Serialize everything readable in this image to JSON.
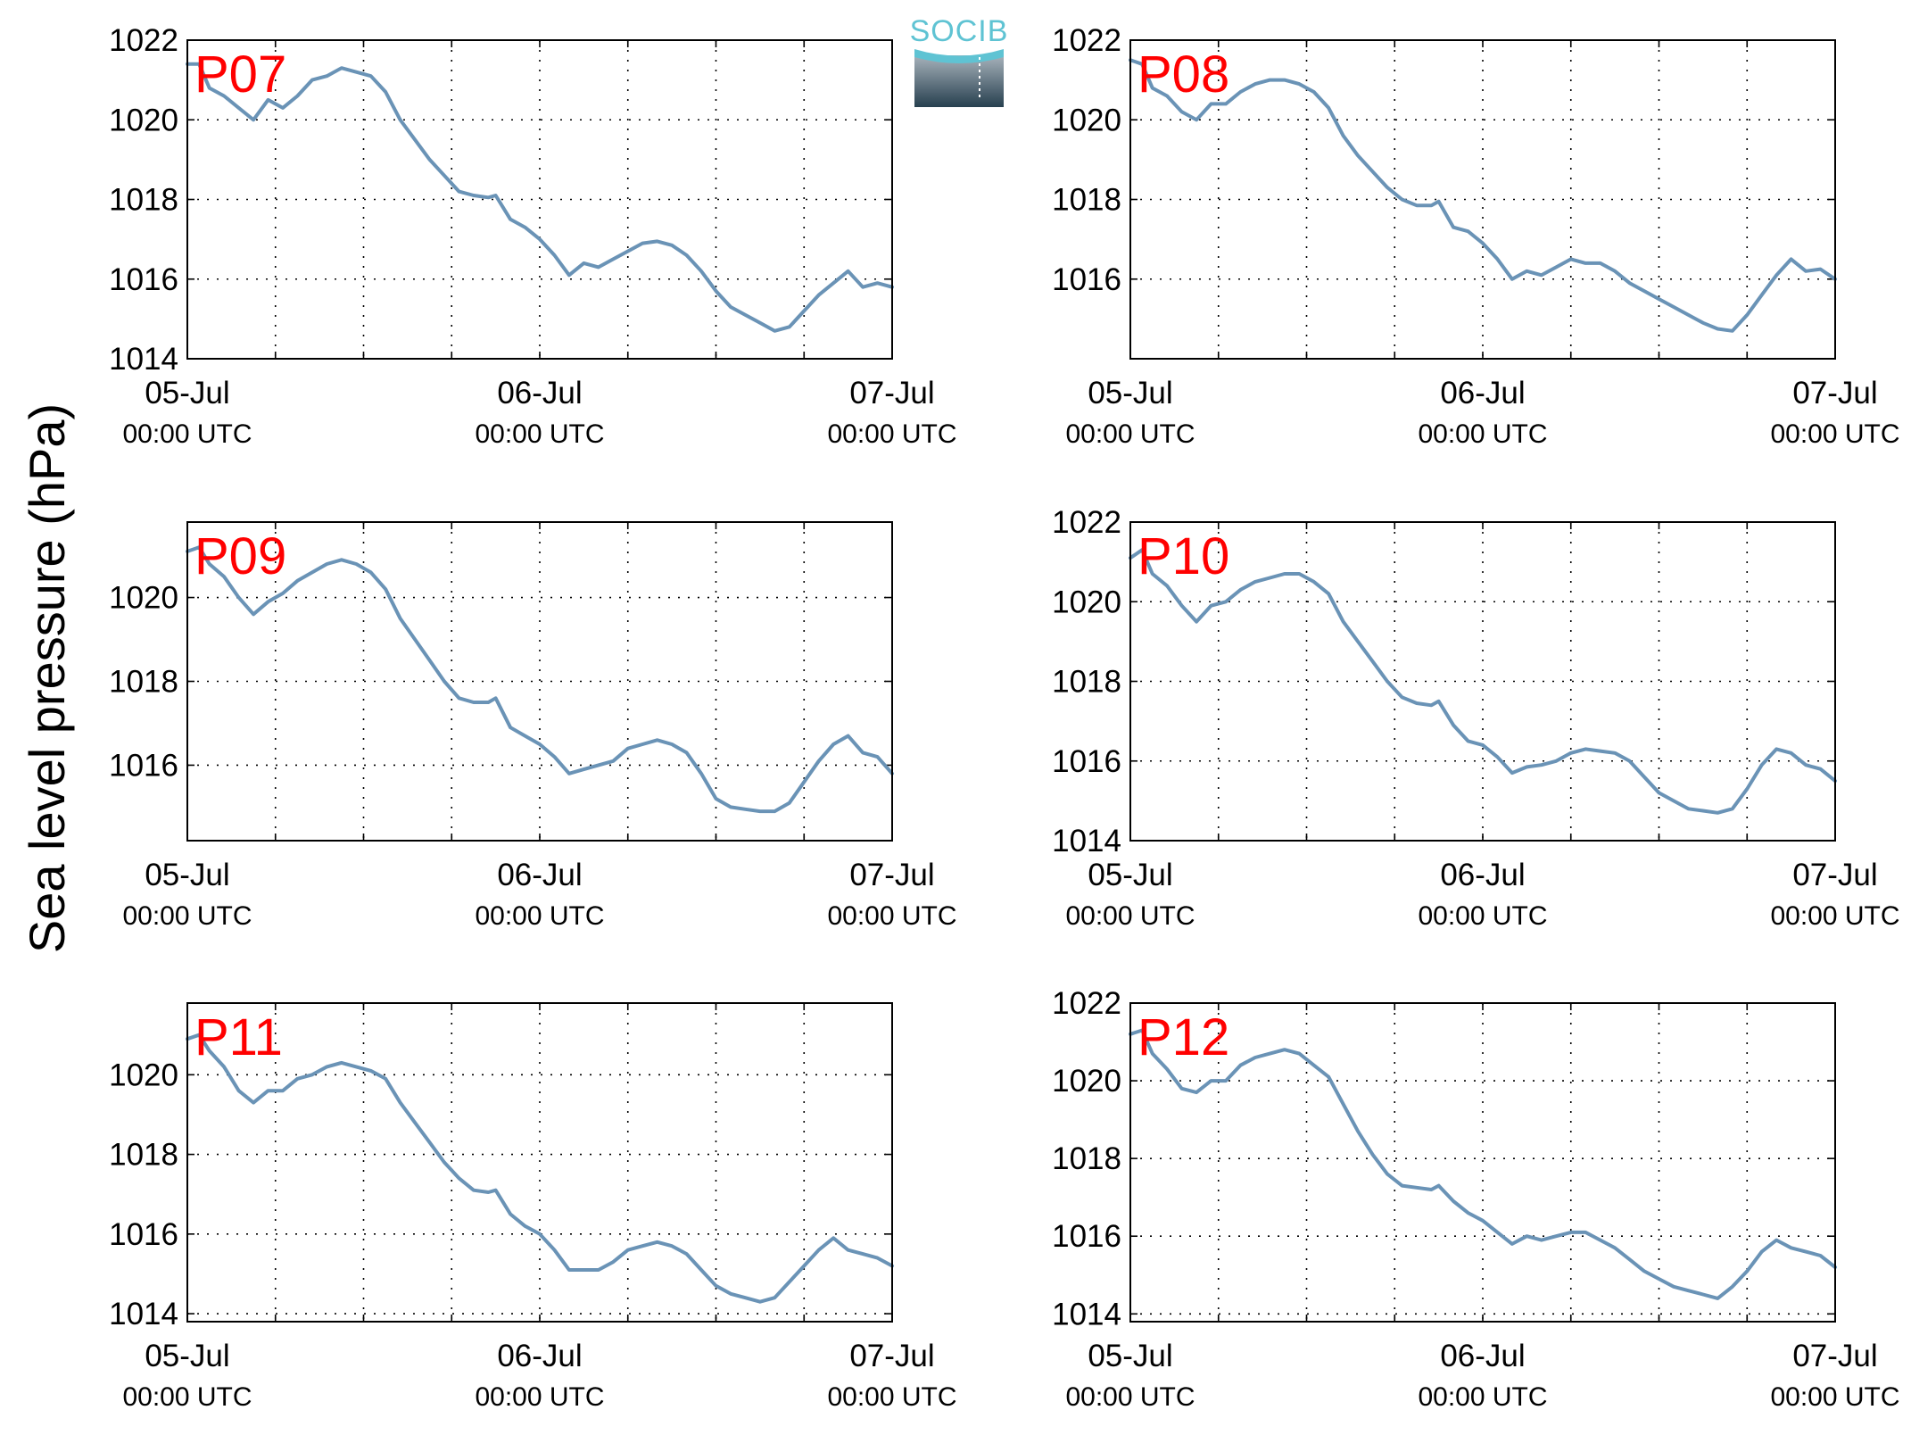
{
  "logo": {
    "text": "SOCIB"
  },
  "ylabel": "Sea level pressure (hPa)",
  "colors": {
    "line": "#6a93b6",
    "panel_label": "#ff0000",
    "axes": "#000000",
    "grid": "#000000"
  },
  "chart_data": [
    {
      "type": "line",
      "panel": "P07",
      "x_range": [
        "05-Jul 00:00 UTC",
        "07-Jul 00:00 UTC"
      ],
      "x_ticks": [
        {
          "label": "05-Jul",
          "sub": "00:00 UTC"
        },
        {
          "label": "06-Jul",
          "sub": "00:00 UTC"
        },
        {
          "label": "07-Jul",
          "sub": "00:00 UTC"
        }
      ],
      "x_unit": "hours since 05-Jul 00:00 UTC",
      "ylim": [
        1014,
        1022
      ],
      "y_ticks": [
        "1014",
        "1016",
        "1018",
        "1020",
        "1022"
      ],
      "grid": true,
      "series": [
        {
          "x": [
            0,
            0.8,
            1.5,
            2.5,
            3.5,
            4.5,
            5.5,
            6.5,
            7.5,
            8.5,
            9.5,
            10.5,
            11.5,
            12.5,
            13.5,
            14.5,
            15.5,
            16.5,
            17.5,
            18.5,
            19.5,
            20.5,
            21,
            22,
            23,
            24,
            25,
            26,
            27,
            28,
            29,
            30,
            31,
            32,
            33,
            34,
            35,
            36,
            37,
            38,
            39,
            40,
            41,
            42,
            43,
            44,
            45,
            46,
            47,
            48
          ],
          "y": [
            1021.4,
            1021.4,
            1020.8,
            1020.6,
            1020.3,
            1020.0,
            1020.5,
            1020.3,
            1020.6,
            1021.0,
            1021.1,
            1021.3,
            1021.2,
            1021.1,
            1020.7,
            1020.0,
            1019.5,
            1019.0,
            1018.6,
            1018.2,
            1018.1,
            1018.05,
            1018.1,
            1017.5,
            1017.3,
            1017.0,
            1016.6,
            1016.1,
            1016.4,
            1016.3,
            1016.5,
            1016.7,
            1016.9,
            1016.95,
            1016.85,
            1016.6,
            1016.2,
            1015.7,
            1015.3,
            1015.1,
            1014.9,
            1014.7,
            1014.8,
            1015.2,
            1015.6,
            1015.9,
            1016.2,
            1015.8,
            1015.9,
            1015.8
          ]
        }
      ]
    },
    {
      "type": "line",
      "panel": "P08",
      "x_range": [
        "05-Jul 00:00 UTC",
        "07-Jul 00:00 UTC"
      ],
      "x_ticks": [
        {
          "label": "05-Jul",
          "sub": "00:00 UTC"
        },
        {
          "label": "06-Jul",
          "sub": "00:00 UTC"
        },
        {
          "label": "07-Jul",
          "sub": "00:00 UTC"
        }
      ],
      "x_unit": "hours since 05-Jul 00:00 UTC",
      "ylim": [
        1014,
        1022
      ],
      "y_ticks": [
        "1016",
        "1018",
        "1020",
        "1022"
      ],
      "grid": true,
      "series": [
        {
          "x": [
            0,
            0.8,
            1.5,
            2.5,
            3.5,
            4.5,
            5.5,
            6.5,
            7.5,
            8.5,
            9.5,
            10.5,
            11.5,
            12.5,
            13.5,
            14.5,
            15.5,
            16.5,
            17.5,
            18.5,
            19.5,
            20.5,
            21,
            22,
            23,
            24,
            25,
            26,
            27,
            28,
            29,
            30,
            31,
            32,
            33,
            34,
            35,
            36,
            37,
            38,
            39,
            40,
            41,
            42,
            43,
            44,
            45,
            46,
            47,
            48
          ],
          "y": [
            1021.5,
            1021.4,
            1020.8,
            1020.6,
            1020.2,
            1020.0,
            1020.4,
            1020.4,
            1020.7,
            1020.9,
            1021.0,
            1021.0,
            1020.9,
            1020.7,
            1020.3,
            1019.6,
            1019.1,
            1018.7,
            1018.3,
            1018.0,
            1017.85,
            1017.85,
            1017.95,
            1017.3,
            1017.2,
            1016.9,
            1016.5,
            1016.0,
            1016.2,
            1016.1,
            1016.3,
            1016.5,
            1016.4,
            1016.4,
            1016.2,
            1015.9,
            1015.7,
            1015.5,
            1015.3,
            1015.1,
            1014.9,
            1014.75,
            1014.7,
            1015.1,
            1015.6,
            1016.1,
            1016.5,
            1016.2,
            1016.25,
            1016.0
          ]
        }
      ]
    },
    {
      "type": "line",
      "panel": "P09",
      "x_range": [
        "05-Jul 00:00 UTC",
        "07-Jul 00:00 UTC"
      ],
      "x_ticks": [
        {
          "label": "05-Jul",
          "sub": "00:00 UTC"
        },
        {
          "label": "06-Jul",
          "sub": "00:00 UTC"
        },
        {
          "label": "07-Jul",
          "sub": "00:00 UTC"
        }
      ],
      "x_unit": "hours since 05-Jul 00:00 UTC",
      "ylim": [
        1014.2,
        1021.8
      ],
      "y_ticks": [
        "1016",
        "1018",
        "1020"
      ],
      "grid": true,
      "series": [
        {
          "x": [
            0,
            0.8,
            1.5,
            2.5,
            3.5,
            4.5,
            5.5,
            6.5,
            7.5,
            8.5,
            9.5,
            10.5,
            11.5,
            12.5,
            13.5,
            14.5,
            15.5,
            16.5,
            17.5,
            18.5,
            19.5,
            20.5,
            21,
            22,
            23,
            24,
            25,
            26,
            27,
            28,
            29,
            30,
            31,
            32,
            33,
            34,
            35,
            36,
            37,
            38,
            39,
            40,
            41,
            42,
            43,
            44,
            45,
            46,
            47,
            48
          ],
          "y": [
            1021.1,
            1021.2,
            1020.8,
            1020.5,
            1020.0,
            1019.6,
            1019.9,
            1020.1,
            1020.4,
            1020.6,
            1020.8,
            1020.9,
            1020.8,
            1020.6,
            1020.2,
            1019.5,
            1019.0,
            1018.5,
            1018.0,
            1017.6,
            1017.5,
            1017.5,
            1017.6,
            1016.9,
            1016.7,
            1016.5,
            1016.2,
            1015.8,
            1015.9,
            1016.0,
            1016.1,
            1016.4,
            1016.5,
            1016.6,
            1016.5,
            1016.3,
            1015.8,
            1015.2,
            1015.0,
            1014.95,
            1014.9,
            1014.9,
            1015.1,
            1015.6,
            1016.1,
            1016.5,
            1016.7,
            1016.3,
            1016.2,
            1015.8
          ]
        }
      ]
    },
    {
      "type": "line",
      "panel": "P10",
      "x_range": [
        "05-Jul 00:00 UTC",
        "07-Jul 00:00 UTC"
      ],
      "x_ticks": [
        {
          "label": "05-Jul",
          "sub": "00:00 UTC"
        },
        {
          "label": "06-Jul",
          "sub": "00:00 UTC"
        },
        {
          "label": "07-Jul",
          "sub": "00:00 UTC"
        }
      ],
      "x_unit": "hours since 05-Jul 00:00 UTC",
      "ylim": [
        1014,
        1022
      ],
      "y_ticks": [
        "1014",
        "1016",
        "1018",
        "1020",
        "1022"
      ],
      "grid": true,
      "series": [
        {
          "x": [
            0,
            0.8,
            1.5,
            2.5,
            3.5,
            4.5,
            5.5,
            6.5,
            7.5,
            8.5,
            9.5,
            10.5,
            11.5,
            12.5,
            13.5,
            14.5,
            15.5,
            16.5,
            17.5,
            18.5,
            19.5,
            20.5,
            21,
            22,
            23,
            24,
            25,
            26,
            27,
            28,
            29,
            30,
            31,
            32,
            33,
            34,
            35,
            36,
            37,
            38,
            39,
            40,
            41,
            42,
            43,
            44,
            45,
            46,
            47,
            48
          ],
          "y": [
            1021.1,
            1021.3,
            1020.7,
            1020.4,
            1019.9,
            1019.5,
            1019.9,
            1020.0,
            1020.3,
            1020.5,
            1020.6,
            1020.7,
            1020.7,
            1020.5,
            1020.2,
            1019.5,
            1019.0,
            1018.5,
            1018.0,
            1017.6,
            1017.45,
            1017.4,
            1017.5,
            1016.9,
            1016.5,
            1016.4,
            1016.1,
            1015.7,
            1015.85,
            1015.9,
            1016.0,
            1016.2,
            1016.3,
            1016.25,
            1016.2,
            1016.0,
            1015.6,
            1015.2,
            1015.0,
            1014.8,
            1014.75,
            1014.7,
            1014.8,
            1015.3,
            1015.9,
            1016.3,
            1016.2,
            1015.9,
            1015.8,
            1015.5
          ]
        }
      ]
    },
    {
      "type": "line",
      "panel": "P11",
      "x_range": [
        "05-Jul 00:00 UTC",
        "07-Jul 00:00 UTC"
      ],
      "x_ticks": [
        {
          "label": "05-Jul",
          "sub": "00:00 UTC"
        },
        {
          "label": "06-Jul",
          "sub": "00:00 UTC"
        },
        {
          "label": "07-Jul",
          "sub": "00:00 UTC"
        }
      ],
      "x_unit": "hours since 05-Jul 00:00 UTC",
      "ylim": [
        1013.8,
        1021.8
      ],
      "y_ticks": [
        "1014",
        "1016",
        "1018",
        "1020"
      ],
      "grid": true,
      "series": [
        {
          "x": [
            0,
            0.8,
            1.5,
            2.5,
            3.5,
            4.5,
            5.5,
            6.5,
            7.5,
            8.5,
            9.5,
            10.5,
            11.5,
            12.5,
            13.5,
            14.5,
            15.5,
            16.5,
            17.5,
            18.5,
            19.5,
            20.5,
            21,
            22,
            23,
            24,
            25,
            26,
            27,
            28,
            29,
            30,
            31,
            32,
            33,
            34,
            35,
            36,
            37,
            38,
            39,
            40,
            41,
            42,
            43,
            44,
            45,
            46,
            47,
            48
          ],
          "y": [
            1020.9,
            1021.0,
            1020.6,
            1020.2,
            1019.6,
            1019.3,
            1019.6,
            1019.6,
            1019.9,
            1020.0,
            1020.2,
            1020.3,
            1020.2,
            1020.1,
            1019.9,
            1019.3,
            1018.8,
            1018.3,
            1017.8,
            1017.4,
            1017.1,
            1017.05,
            1017.1,
            1016.5,
            1016.2,
            1016.0,
            1015.6,
            1015.1,
            1015.1,
            1015.1,
            1015.3,
            1015.6,
            1015.7,
            1015.8,
            1015.7,
            1015.5,
            1015.1,
            1014.7,
            1014.5,
            1014.4,
            1014.3,
            1014.4,
            1014.8,
            1015.2,
            1015.6,
            1015.9,
            1015.6,
            1015.5,
            1015.4,
            1015.2
          ]
        }
      ]
    },
    {
      "type": "line",
      "panel": "P12",
      "x_range": [
        "05-Jul 00:00 UTC",
        "07-Jul 00:00 UTC"
      ],
      "x_ticks": [
        {
          "label": "05-Jul",
          "sub": "00:00 UTC"
        },
        {
          "label": "06-Jul",
          "sub": "00:00 UTC"
        },
        {
          "label": "07-Jul",
          "sub": "00:00 UTC"
        }
      ],
      "x_unit": "hours since 05-Jul 00:00 UTC",
      "ylim": [
        1013.8,
        1022
      ],
      "y_ticks": [
        "1014",
        "1016",
        "1018",
        "1020",
        "1022"
      ],
      "grid": true,
      "series": [
        {
          "x": [
            0,
            0.8,
            1.5,
            2.5,
            3.5,
            4.5,
            5.5,
            6.5,
            7.5,
            8.5,
            9.5,
            10.5,
            11.5,
            12.5,
            13.5,
            14.5,
            15.5,
            16.5,
            17.5,
            18.5,
            19.5,
            20.5,
            21,
            22,
            23,
            24,
            25,
            26,
            27,
            28,
            29,
            30,
            31,
            32,
            33,
            34,
            35,
            36,
            37,
            38,
            39,
            40,
            41,
            42,
            43,
            44,
            45,
            46,
            47,
            48
          ],
          "y": [
            1021.2,
            1021.3,
            1020.7,
            1020.3,
            1019.8,
            1019.7,
            1020.0,
            1020.0,
            1020.4,
            1020.6,
            1020.7,
            1020.8,
            1020.7,
            1020.4,
            1020.1,
            1019.4,
            1018.7,
            1018.1,
            1017.6,
            1017.3,
            1017.25,
            1017.2,
            1017.3,
            1016.9,
            1016.6,
            1016.4,
            1016.1,
            1015.8,
            1016.0,
            1015.9,
            1016.0,
            1016.1,
            1016.1,
            1015.9,
            1015.7,
            1015.4,
            1015.1,
            1014.9,
            1014.7,
            1014.6,
            1014.5,
            1014.4,
            1014.7,
            1015.1,
            1015.6,
            1015.9,
            1015.7,
            1015.6,
            1015.5,
            1015.2
          ]
        }
      ]
    }
  ]
}
